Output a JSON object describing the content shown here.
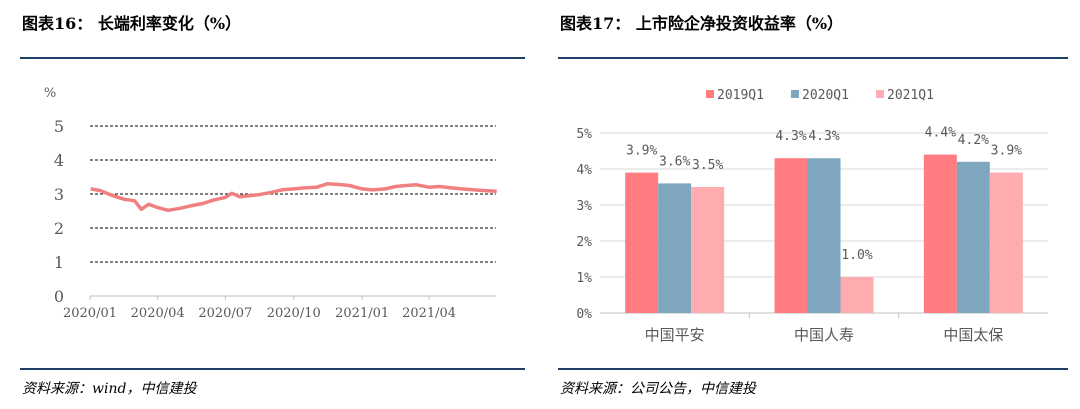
{
  "left": {
    "title": "图表16： 长端利率变化（%）",
    "source": "资料来源：wind，中信建投",
    "chart_data": {
      "type": "line",
      "ylabel": "%",
      "ylim": [
        0,
        5
      ],
      "yticks": [
        "0",
        "1",
        "2",
        "3",
        "4",
        "5"
      ],
      "xticks": [
        "2020/01",
        "2020/04",
        "2020/07",
        "2020/10",
        "2021/01",
        "2021/04"
      ],
      "grid": "dashed-horizontal",
      "color": "#f08080",
      "series": [
        {
          "x": [
            "2020-01-02",
            "2020-01-15",
            "2020-02-01",
            "2020-02-15",
            "2020-03-01",
            "2020-03-10",
            "2020-03-20",
            "2020-04-01",
            "2020-04-15",
            "2020-05-01",
            "2020-05-15",
            "2020-06-01",
            "2020-06-15",
            "2020-07-01",
            "2020-07-10",
            "2020-07-20",
            "2020-08-01",
            "2020-08-15",
            "2020-09-01",
            "2020-09-15",
            "2020-10-01",
            "2020-10-15",
            "2020-11-01",
            "2020-11-15",
            "2020-12-01",
            "2020-12-15",
            "2021-01-01",
            "2021-01-15",
            "2021-02-01",
            "2021-02-15",
            "2021-03-01",
            "2021-03-15",
            "2021-04-01",
            "2021-04-15",
            "2021-05-01",
            "2021-05-15",
            "2021-06-01",
            "2021-06-15",
            "2021-07-01"
          ],
          "values": [
            3.15,
            3.1,
            2.95,
            2.85,
            2.8,
            2.55,
            2.7,
            2.6,
            2.52,
            2.58,
            2.65,
            2.72,
            2.82,
            2.9,
            3.02,
            2.92,
            2.95,
            2.98,
            3.05,
            3.12,
            3.15,
            3.18,
            3.2,
            3.3,
            3.28,
            3.25,
            3.15,
            3.12,
            3.15,
            3.22,
            3.25,
            3.27,
            3.2,
            3.22,
            3.18,
            3.15,
            3.12,
            3.1,
            3.08
          ]
        }
      ]
    }
  },
  "right": {
    "title": "图表17： 上市险企净投资收益率（%）",
    "source": "资料来源：公司公告，中信建投",
    "chart_data": {
      "type": "bar",
      "categories": [
        "中国平安",
        "中国人寿",
        "中国太保"
      ],
      "ylim": [
        0,
        5
      ],
      "yticks": [
        "0%",
        "1%",
        "2%",
        "3%",
        "4%",
        "5%"
      ],
      "legend_position": "top",
      "series": [
        {
          "name": "2019Q1",
          "color": "#ff7c80",
          "values": [
            3.9,
            4.3,
            4.4
          ],
          "labels": [
            "3.9%",
            "4.3%",
            "4.4%"
          ]
        },
        {
          "name": "2020Q1",
          "color": "#7fa6bf",
          "values": [
            3.6,
            4.3,
            4.2
          ],
          "labels": [
            "3.6%",
            "4.3%",
            "4.2%"
          ]
        },
        {
          "name": "2021Q1",
          "color": "#ffacb0",
          "values": [
            3.5,
            1.0,
            3.9
          ],
          "labels": [
            "3.5%",
            "1.0%",
            "3.9%"
          ]
        }
      ]
    }
  }
}
